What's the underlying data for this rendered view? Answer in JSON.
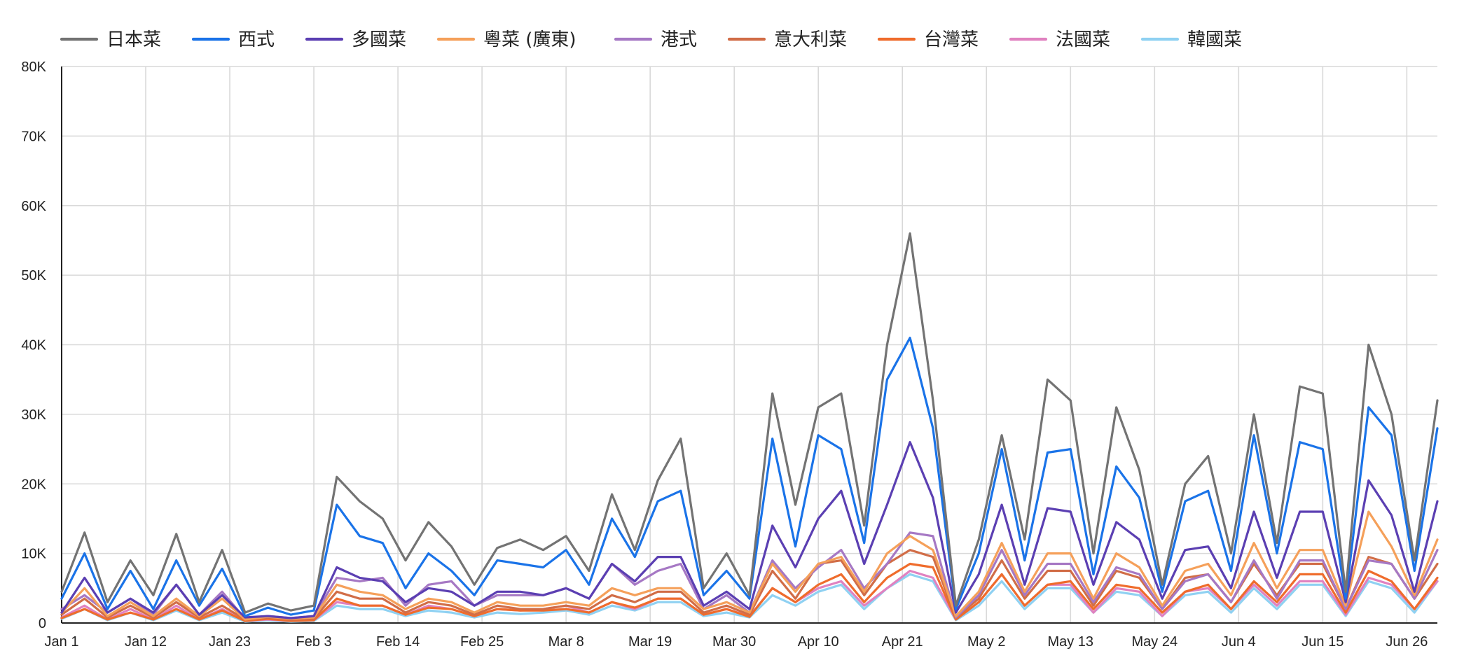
{
  "chart_data": {
    "type": "line",
    "legend_position": "top-left",
    "grid": true,
    "ylim": [
      0,
      80000
    ],
    "y_ticks": [
      0,
      10000,
      20000,
      30000,
      40000,
      50000,
      60000,
      70000,
      80000
    ],
    "y_tick_labels": [
      "0",
      "10K",
      "20K",
      "30K",
      "40K",
      "50K",
      "60K",
      "70K",
      "80K"
    ],
    "x_day_range": [
      0,
      180
    ],
    "x_ticks": [
      0,
      11,
      22,
      33,
      44,
      55,
      66,
      77,
      88,
      99,
      110,
      121,
      132,
      143,
      154,
      165,
      176
    ],
    "x_tick_labels": [
      "Jan 1",
      "Jan 12",
      "Jan 23",
      "Feb 3",
      "Feb 14",
      "Feb 25",
      "Mar 8",
      "Mar 19",
      "Mar 30",
      "Apr 10",
      "Apr 21",
      "May 2",
      "May 13",
      "May 24",
      "Jun 4",
      "Jun 15",
      "Jun 26"
    ],
    "x_dates": [
      "Jan 1",
      "Jan 4",
      "Jan 7",
      "Jan 10",
      "Jan 13",
      "Jan 16",
      "Jan 19",
      "Jan 22",
      "Jan 25",
      "Jan 28",
      "Jan 31",
      "Feb 3",
      "Feb 6",
      "Feb 9",
      "Feb 12",
      "Feb 15",
      "Feb 18",
      "Feb 21",
      "Feb 24",
      "Feb 27",
      "Mar 2",
      "Mar 5",
      "Mar 8",
      "Mar 11",
      "Mar 14",
      "Mar 17",
      "Mar 20",
      "Mar 23",
      "Mar 26",
      "Mar 29",
      "Apr 1",
      "Apr 4",
      "Apr 7",
      "Apr 10",
      "Apr 13",
      "Apr 16",
      "Apr 19",
      "Apr 22",
      "Apr 25",
      "Apr 28",
      "May 1",
      "May 4",
      "May 7",
      "May 10",
      "May 13",
      "May 16",
      "May 19",
      "May 22",
      "May 25",
      "May 28",
      "May 31",
      "Jun 3",
      "Jun 6",
      "Jun 9",
      "Jun 12",
      "Jun 15",
      "Jun 18",
      "Jun 21",
      "Jun 24",
      "Jun 27",
      "Jun 30"
    ],
    "series": [
      {
        "name": "日本菜",
        "color": "#737373",
        "values": [
          4500,
          13000,
          3000,
          9000,
          4000,
          12800,
          3000,
          10500,
          1500,
          2800,
          1800,
          2500,
          21000,
          17500,
          15000,
          9000,
          14500,
          11000,
          5500,
          10800,
          12000,
          10500,
          12500,
          7500,
          18500,
          10500,
          20500,
          26500,
          5000,
          10000,
          4000,
          33000,
          17000,
          31000,
          33000,
          14000,
          40000,
          56000,
          32000,
          2500,
          12000,
          27000,
          12000,
          35000,
          32000,
          10000,
          31000,
          22000,
          5500,
          20000,
          24000,
          10000,
          30000,
          11500,
          34000,
          33000,
          4500,
          40000,
          30000,
          9000,
          32000
        ]
      },
      {
        "name": "西式",
        "color": "#1a73e8",
        "values": [
          3500,
          10000,
          2000,
          7500,
          2000,
          9000,
          2500,
          7800,
          1000,
          2200,
          1200,
          1800,
          17000,
          12500,
          11500,
          5000,
          10000,
          7500,
          4000,
          9000,
          8500,
          8000,
          10500,
          5500,
          15000,
          9500,
          17500,
          19000,
          4000,
          7500,
          3500,
          26500,
          11000,
          27000,
          25000,
          11500,
          35000,
          41000,
          28000,
          2000,
          10000,
          25000,
          9000,
          24500,
          25000,
          7000,
          22500,
          18000,
          4500,
          17500,
          19000,
          7500,
          27000,
          10000,
          26000,
          25000,
          3500,
          31000,
          27000,
          7500,
          28000
        ]
      },
      {
        "name": "多國菜",
        "color": "#5b3fb2",
        "values": [
          1500,
          6500,
          1500,
          3500,
          1500,
          5500,
          1200,
          4000,
          800,
          1000,
          700,
          1000,
          8000,
          6500,
          6000,
          3000,
          5000,
          4500,
          2500,
          4500,
          4500,
          4000,
          5000,
          3500,
          8500,
          6000,
          9500,
          9500,
          2500,
          4500,
          2000,
          14000,
          8000,
          15000,
          19000,
          8500,
          17000,
          26000,
          18000,
          1500,
          7000,
          17000,
          5500,
          16500,
          16000,
          5500,
          14500,
          12000,
          3500,
          10500,
          11000,
          5000,
          16000,
          6500,
          16000,
          16000,
          3000,
          20500,
          15500,
          4500,
          17500
        ]
      },
      {
        "name": "粵菜 (廣東)",
        "color": "#f5a05a",
        "values": [
          1500,
          5000,
          1000,
          3000,
          1000,
          3500,
          1000,
          3500,
          500,
          900,
          600,
          800,
          5500,
          4500,
          4000,
          2000,
          3500,
          3000,
          1500,
          3000,
          2500,
          2500,
          3000,
          2500,
          5000,
          4000,
          5000,
          5000,
          2000,
          3000,
          1500,
          8500,
          4500,
          8500,
          9500,
          4500,
          10000,
          12500,
          10500,
          1000,
          4500,
          11500,
          4500,
          10000,
          10000,
          3500,
          10000,
          8000,
          2500,
          7500,
          8500,
          4000,
          11500,
          5000,
          10500,
          10500,
          2500,
          16000,
          11000,
          4000,
          12000
        ]
      },
      {
        "name": "港式",
        "color": "#a678c4",
        "values": [
          2000,
          4000,
          1500,
          3500,
          1200,
          5500,
          1200,
          4500,
          600,
          1000,
          700,
          1000,
          6500,
          6000,
          6500,
          2500,
          5500,
          6000,
          2500,
          4000,
          4000,
          4000,
          5000,
          3500,
          8500,
          5500,
          7500,
          8500,
          2000,
          4000,
          1500,
          9000,
          5000,
          8000,
          10500,
          5000,
          8500,
          13000,
          12500,
          800,
          4000,
          10500,
          4000,
          8500,
          8500,
          3000,
          8000,
          7000,
          2000,
          6000,
          7000,
          3000,
          9000,
          3500,
          9000,
          9000,
          2000,
          9000,
          8500,
          3500,
          10500
        ]
      },
      {
        "name": "意大利菜",
        "color": "#d16d47",
        "values": [
          1200,
          3500,
          800,
          2500,
          800,
          3000,
          800,
          2500,
          500,
          800,
          500,
          600,
          4500,
          3500,
          3500,
          1500,
          3000,
          2500,
          1200,
          2500,
          2000,
          2000,
          2500,
          2000,
          4000,
          3000,
          4500,
          4500,
          1500,
          2500,
          1200,
          7500,
          3500,
          8500,
          9000,
          4000,
          8500,
          10500,
          9500,
          800,
          3500,
          9000,
          3500,
          7500,
          7500,
          2500,
          7500,
          6500,
          2000,
          6500,
          7000,
          3000,
          8500,
          4000,
          8500,
          8500,
          2000,
          9500,
          8500,
          3500,
          8500
        ]
      },
      {
        "name": "台灣菜",
        "color": "#ef6c2c",
        "values": [
          700,
          2000,
          500,
          1500,
          500,
          2000,
          500,
          1800,
          300,
          600,
          300,
          400,
          3500,
          2500,
          2500,
          1200,
          2200,
          2000,
          1000,
          2000,
          1800,
          1800,
          2000,
          1500,
          3000,
          2200,
          3500,
          3500,
          1200,
          2000,
          900,
          5000,
          3000,
          5500,
          7000,
          3000,
          6500,
          8500,
          8000,
          500,
          3000,
          7000,
          2500,
          5500,
          6000,
          2000,
          5500,
          5000,
          1500,
          4500,
          5500,
          2000,
          6000,
          3000,
          7000,
          7000,
          1500,
          7500,
          6000,
          2000,
          6500
        ]
      },
      {
        "name": "法國菜",
        "color": "#e082c0",
        "values": [
          800,
          2500,
          500,
          2000,
          500,
          2500,
          500,
          2000,
          300,
          500,
          300,
          400,
          3000,
          2500,
          2500,
          1200,
          2500,
          2000,
          1000,
          2000,
          1800,
          2000,
          2500,
          1500,
          3000,
          2000,
          3500,
          3500,
          1200,
          2000,
          1000,
          5000,
          3000,
          5000,
          6000,
          2500,
          5000,
          7500,
          6500,
          500,
          3000,
          7000,
          2500,
          5500,
          5500,
          1500,
          5000,
          4500,
          1000,
          4500,
          5000,
          2000,
          5500,
          2500,
          6000,
          6000,
          1200,
          6500,
          5500,
          2000,
          6000
        ]
      },
      {
        "name": "韓國菜",
        "color": "#8fd1f2",
        "values": [
          600,
          2000,
          400,
          1500,
          400,
          1800,
          400,
          1500,
          200,
          400,
          200,
          300,
          2500,
          2000,
          2000,
          1000,
          1800,
          1500,
          800,
          1500,
          1300,
          1500,
          1800,
          1200,
          2500,
          1800,
          3000,
          3000,
          1000,
          1500,
          800,
          4000,
          2500,
          4500,
          5500,
          2000,
          5000,
          7000,
          6000,
          400,
          2500,
          6000,
          2000,
          5000,
          5000,
          1500,
          4500,
          4000,
          1000,
          4000,
          4500,
          1500,
          5000,
          2000,
          5500,
          5500,
          1000,
          6000,
          5000,
          1500,
          6000
        ]
      }
    ]
  }
}
